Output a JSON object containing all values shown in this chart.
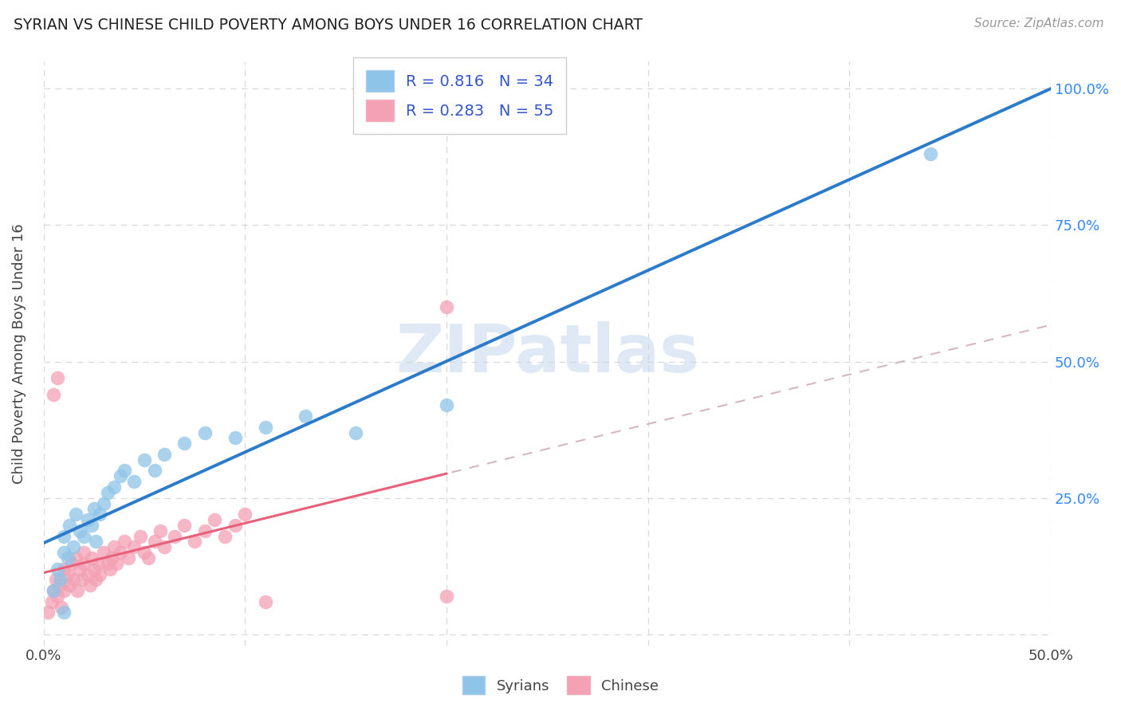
{
  "title": "SYRIAN VS CHINESE CHILD POVERTY AMONG BOYS UNDER 16 CORRELATION CHART",
  "source": "Source: ZipAtlas.com",
  "ylabel": "Child Poverty Among Boys Under 16",
  "xlim": [
    0.0,
    0.5
  ],
  "ylim": [
    -0.02,
    1.05
  ],
  "xtick_positions": [
    0.0,
    0.1,
    0.2,
    0.3,
    0.4,
    0.5
  ],
  "xtick_labels": [
    "0.0%",
    "",
    "",
    "",
    "",
    "50.0%"
  ],
  "ytick_positions": [
    0.0,
    0.25,
    0.5,
    0.75,
    1.0
  ],
  "ytick_labels_right": [
    "",
    "25.0%",
    "50.0%",
    "75.0%",
    "100.0%"
  ],
  "watermark": "ZIPatlas",
  "syrian_color": "#8ec4e8",
  "chinese_color": "#f4a0b5",
  "syrian_line_color": "#2b7bca",
  "chinese_line_color": "#e8607a",
  "diagonal_color": "#d0b0b8",
  "syrians_label": "Syrians",
  "chinese_label": "Chinese",
  "syrian_R": 0.816,
  "chinese_R": 0.283,
  "syrian_N": 34,
  "chinese_N": 55,
  "legend_text_color": "#3355cc",
  "syrian_scatter_x": [
    0.005,
    0.007,
    0.008,
    0.01,
    0.01,
    0.012,
    0.013,
    0.015,
    0.016,
    0.018,
    0.02,
    0.022,
    0.024,
    0.025,
    0.026,
    0.028,
    0.03,
    0.032,
    0.035,
    0.038,
    0.04,
    0.045,
    0.05,
    0.055,
    0.06,
    0.07,
    0.08,
    0.095,
    0.11,
    0.13,
    0.155,
    0.2,
    0.01,
    0.44
  ],
  "syrian_scatter_y": [
    0.08,
    0.12,
    0.1,
    0.15,
    0.18,
    0.14,
    0.2,
    0.16,
    0.22,
    0.19,
    0.18,
    0.21,
    0.2,
    0.23,
    0.17,
    0.22,
    0.24,
    0.26,
    0.27,
    0.29,
    0.3,
    0.28,
    0.32,
    0.3,
    0.33,
    0.35,
    0.37,
    0.36,
    0.38,
    0.4,
    0.37,
    0.42,
    0.04,
    0.88
  ],
  "chinese_scatter_x": [
    0.002,
    0.004,
    0.005,
    0.006,
    0.007,
    0.008,
    0.009,
    0.01,
    0.01,
    0.012,
    0.013,
    0.014,
    0.015,
    0.016,
    0.017,
    0.018,
    0.019,
    0.02,
    0.02,
    0.022,
    0.023,
    0.024,
    0.025,
    0.026,
    0.027,
    0.028,
    0.03,
    0.032,
    0.033,
    0.034,
    0.035,
    0.036,
    0.038,
    0.04,
    0.042,
    0.045,
    0.048,
    0.05,
    0.052,
    0.055,
    0.058,
    0.06,
    0.065,
    0.07,
    0.075,
    0.08,
    0.085,
    0.09,
    0.095,
    0.1,
    0.005,
    0.007,
    0.11,
    0.2,
    0.2
  ],
  "chinese_scatter_y": [
    0.04,
    0.06,
    0.08,
    0.1,
    0.07,
    0.09,
    0.05,
    0.12,
    0.08,
    0.11,
    0.09,
    0.13,
    0.1,
    0.14,
    0.08,
    0.12,
    0.1,
    0.13,
    0.15,
    0.11,
    0.09,
    0.14,
    0.12,
    0.1,
    0.13,
    0.11,
    0.15,
    0.13,
    0.12,
    0.14,
    0.16,
    0.13,
    0.15,
    0.17,
    0.14,
    0.16,
    0.18,
    0.15,
    0.14,
    0.17,
    0.19,
    0.16,
    0.18,
    0.2,
    0.17,
    0.19,
    0.21,
    0.18,
    0.2,
    0.22,
    0.44,
    0.47,
    0.06,
    0.07,
    0.6
  ],
  "grid_color": "#d8d8d8",
  "source_color": "#999999"
}
